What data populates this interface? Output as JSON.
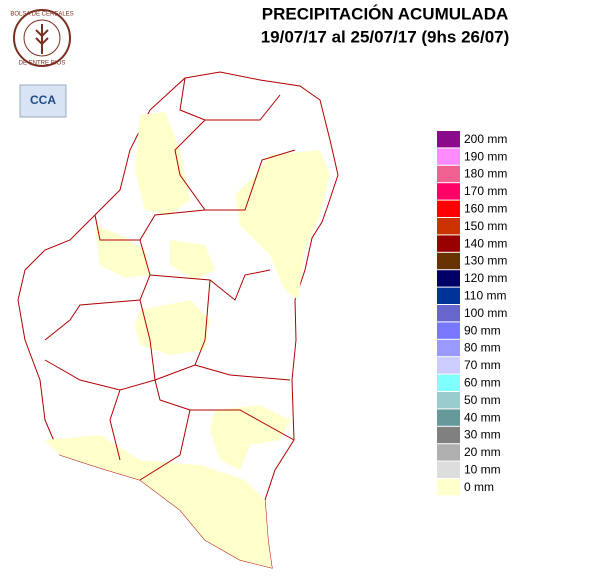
{
  "header": {
    "title": "PRECIPITACIÓN ACUMULADA",
    "subtitle": "19/07/17 al 25/07/17 (9hs 26/07)"
  },
  "logo": {
    "text": "BOLSA DE CEREALES",
    "bottom_text": "DE ENTRE RIOS"
  },
  "badge": {
    "text": "CCA"
  },
  "legend": [
    {
      "label": "200 mm",
      "color": "#8b0a8b"
    },
    {
      "label": "190 mm",
      "color": "#ff8cff"
    },
    {
      "label": "180 mm",
      "color": "#f06090"
    },
    {
      "label": "170 mm",
      "color": "#ff0066"
    },
    {
      "label": "160 mm",
      "color": "#ff0000"
    },
    {
      "label": "150 mm",
      "color": "#cc3300"
    },
    {
      "label": "140 mm",
      "color": "#990000"
    },
    {
      "label": "130 mm",
      "color": "#663300"
    },
    {
      "label": "120 mm",
      "color": "#000066"
    },
    {
      "label": "110 mm",
      "color": "#003399"
    },
    {
      "label": "100 mm",
      "color": "#6666cc"
    },
    {
      "label": "90 mm",
      "color": "#7777ff"
    },
    {
      "label": "80 mm",
      "color": "#9999ff"
    },
    {
      "label": "70 mm",
      "color": "#ccccff"
    },
    {
      "label": "60 mm",
      "color": "#80ffff"
    },
    {
      "label": "50 mm",
      "color": "#99cccc"
    },
    {
      "label": "40 mm",
      "color": "#669999"
    },
    {
      "label": "30 mm",
      "color": "#808080"
    },
    {
      "label": "20 mm",
      "color": "#b0b0b0"
    },
    {
      "label": "10 mm",
      "color": "#dddddd"
    },
    {
      "label": "0 mm",
      "color": "#ffffcc"
    }
  ]
}
